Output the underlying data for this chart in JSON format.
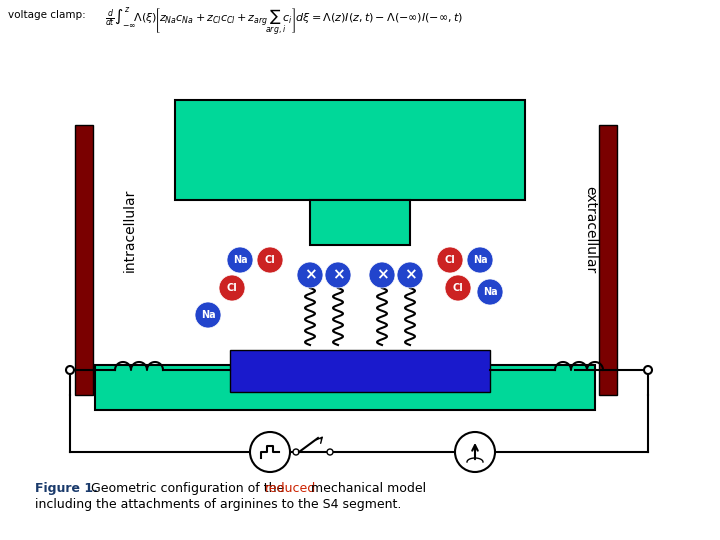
{
  "bg_color": "#ffffff",
  "fig_width": 7.2,
  "fig_height": 5.4,
  "dpi": 100,
  "caption_bold": "Figure 1.",
  "caption_blue": "#1a3a6b",
  "caption_red": "reduced",
  "caption_red_color": "#cc2200",
  "intracellular_label": "intracellular",
  "extracellular_label": "extracellular",
  "green_color": "#00d899",
  "blue_rect_color": "#1a1acc",
  "dark_red": "#7a0000",
  "na_color": "#2244cc",
  "cl_color": "#cc2222",
  "cross_color": "#2244cc"
}
